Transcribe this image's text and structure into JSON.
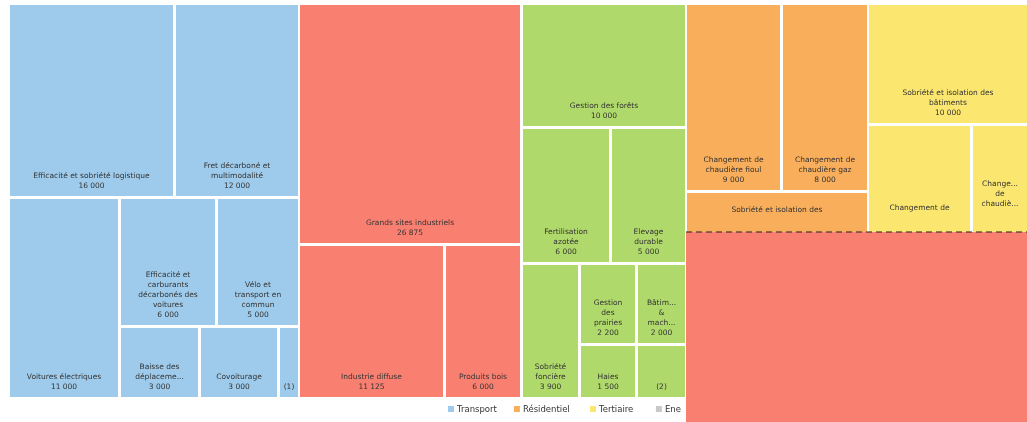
{
  "chart_data": {
    "type": "other",
    "legend": "bottom",
    "data_labels": true,
    "categories": [
      "Efficacité et sobriété logistique",
      "Fret décarboné et multimodalité",
      "Voitures électriques",
      "Efficacité et carburants décarbonés des voitures",
      "Vélo et transport en commun",
      "Baisse des déplaceme...",
      "Covoiturage",
      "(1)",
      "Grands sites industriels",
      "Industrie diffuse",
      "Produits bois",
      "Gestion des forêts",
      "Fertilisation azotée",
      "Elevage durable",
      "Sobriété foncière",
      "Gestion des prairies",
      "Bâtim... & mach...",
      "Haies",
      "(2)",
      "Changement de chaudière fioul",
      "Changement de chaudière gaz",
      "Sobriété et isolation des",
      "Sobriété et isolation des bâtiments",
      "Changement de",
      "Change... de chaudiè..."
    ],
    "series": [
      {
        "name": "Transport",
        "color": "#9ecbeb",
        "values": [
          16000,
          12000,
          11000,
          6000,
          5000,
          3000,
          3000,
          null,
          null,
          null,
          null,
          null,
          null,
          null,
          null,
          null,
          null,
          null,
          null,
          null,
          null,
          null,
          null,
          null,
          null
        ]
      },
      {
        "color": "#f98071",
        "values": [
          null,
          null,
          null,
          null,
          null,
          null,
          null,
          null,
          26875,
          11125,
          6000,
          null,
          null,
          null,
          null,
          null,
          null,
          null,
          null,
          null,
          null,
          null,
          null,
          null,
          null
        ]
      },
      {
        "color": "#b0d96b",
        "values": [
          null,
          null,
          null,
          null,
          null,
          null,
          null,
          null,
          null,
          null,
          null,
          10000,
          6000,
          5000,
          3900,
          2200,
          2000,
          1500,
          null,
          null,
          null,
          null,
          null,
          null,
          null
        ]
      },
      {
        "name": "Résidentiel",
        "color": "#f9ae5b",
        "values": [
          null,
          null,
          null,
          null,
          null,
          null,
          null,
          null,
          null,
          null,
          null,
          null,
          null,
          null,
          null,
          null,
          null,
          null,
          null,
          9000,
          8000,
          null,
          null,
          null,
          null
        ]
      },
      {
        "name": "Tertiaire",
        "color": "#fbe66f",
        "values": [
          null,
          null,
          null,
          null,
          null,
          null,
          null,
          null,
          null,
          null,
          null,
          null,
          null,
          null,
          null,
          null,
          null,
          null,
          null,
          null,
          null,
          null,
          10000,
          null,
          null
        ]
      },
      {
        "name": "Ene",
        "color": "#c8c8c8",
        "values": [
          null,
          null,
          null,
          null,
          null,
          null,
          null,
          null,
          null,
          null,
          null,
          null,
          null,
          null,
          null,
          null,
          null,
          null,
          null,
          null,
          null,
          null,
          null,
          null,
          null
        ]
      }
    ]
  }
}
